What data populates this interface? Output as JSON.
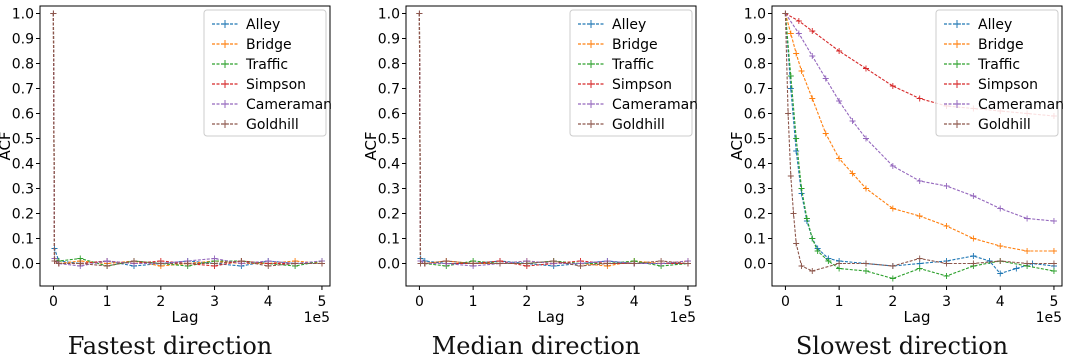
{
  "series_style": [
    {
      "name": "Alley",
      "color": "#1f77b4"
    },
    {
      "name": "Bridge",
      "color": "#ff7f0e"
    },
    {
      "name": "Traffic",
      "color": "#2ca02c"
    },
    {
      "name": "Simpson",
      "color": "#d62728"
    },
    {
      "name": "Cameraman",
      "color": "#9467bd"
    },
    {
      "name": "Goldhill",
      "color": "#8c564b"
    }
  ],
  "chart_data": [
    {
      "type": "line",
      "caption": "Fastest direction",
      "xlabel": "Lag",
      "ylabel": "ACF",
      "x_multiplier_label": "1e5",
      "xlim": [
        -0.25,
        5.15
      ],
      "ylim": [
        -0.09,
        1.03
      ],
      "xticks": [
        0,
        1,
        2,
        3,
        4,
        5
      ],
      "yticks": [
        0.0,
        0.1,
        0.2,
        0.3,
        0.4,
        0.5,
        0.6,
        0.7,
        0.8,
        0.9,
        1.0
      ],
      "ytick_labels": [
        "0.0",
        "0.1",
        "0.2",
        "0.3",
        "0.4",
        "0.5",
        "0.6",
        "0.7",
        "0.8",
        "0.9",
        "1.0"
      ],
      "legend": "top-right",
      "grid": false,
      "series": [
        {
          "name": "Alley",
          "x": [
            0,
            0.02,
            0.1,
            0.5,
            1,
            1.5,
            2,
            2.5,
            3,
            3.5,
            4,
            4.5,
            5
          ],
          "values": [
            1.0,
            0.06,
            0.01,
            0.0,
            0.01,
            -0.01,
            0.0,
            0.01,
            0.0,
            -0.01,
            0.01,
            0.0,
            0.0
          ]
        },
        {
          "name": "Bridge",
          "x": [
            0,
            0.02,
            0.1,
            0.5,
            1,
            1.5,
            2,
            2.5,
            3,
            3.5,
            4,
            4.5,
            5
          ],
          "values": [
            1.0,
            0.02,
            0.0,
            0.01,
            0.0,
            0.01,
            -0.01,
            0.0,
            0.01,
            0.0,
            0.0,
            0.01,
            0.0
          ]
        },
        {
          "name": "Traffic",
          "x": [
            0,
            0.02,
            0.1,
            0.5,
            1,
            1.5,
            2,
            2.5,
            3,
            3.5,
            4,
            4.5,
            5
          ],
          "values": [
            1.0,
            0.02,
            0.01,
            0.02,
            -0.01,
            0.01,
            0.0,
            -0.01,
            0.01,
            0.01,
            0.0,
            -0.01,
            0.01
          ]
        },
        {
          "name": "Simpson",
          "x": [
            0,
            0.02,
            0.1,
            0.5,
            1,
            1.5,
            2,
            2.5,
            3,
            3.5,
            4,
            4.5,
            5
          ],
          "values": [
            1.0,
            0.01,
            0.0,
            0.0,
            0.01,
            0.0,
            0.01,
            0.0,
            -0.01,
            0.01,
            0.0,
            0.0,
            0.0
          ]
        },
        {
          "name": "Cameraman",
          "x": [
            0,
            0.02,
            0.1,
            0.5,
            1,
            1.5,
            2,
            2.5,
            3,
            3.5,
            4,
            4.5,
            5
          ],
          "values": [
            1.0,
            0.02,
            0.0,
            -0.01,
            0.01,
            0.0,
            0.0,
            0.01,
            0.02,
            0.0,
            0.01,
            0.0,
            0.01
          ]
        },
        {
          "name": "Goldhill",
          "x": [
            0,
            0.02,
            0.1,
            0.5,
            1,
            1.5,
            2,
            2.5,
            3,
            3.5,
            4,
            4.5,
            5
          ],
          "values": [
            1.0,
            0.01,
            0.0,
            0.0,
            -0.01,
            0.01,
            0.0,
            0.0,
            0.0,
            0.01,
            -0.01,
            0.0,
            0.0
          ]
        }
      ]
    },
    {
      "type": "line",
      "caption": "Median direction",
      "xlabel": "Lag",
      "ylabel": "ACF",
      "x_multiplier_label": "1e5",
      "xlim": [
        -0.25,
        5.15
      ],
      "ylim": [
        -0.09,
        1.03
      ],
      "xticks": [
        0,
        1,
        2,
        3,
        4,
        5
      ],
      "yticks": [
        0.0,
        0.1,
        0.2,
        0.3,
        0.4,
        0.5,
        0.6,
        0.7,
        0.8,
        0.9,
        1.0
      ],
      "ytick_labels": [
        "0.0",
        "0.1",
        "0.2",
        "0.3",
        "0.4",
        "0.5",
        "0.6",
        "0.7",
        "0.8",
        "0.9",
        "1.0"
      ],
      "legend": "top-right",
      "grid": false,
      "series": [
        {
          "name": "Alley",
          "x": [
            0,
            0.02,
            0.1,
            0.5,
            1,
            1.5,
            2,
            2.5,
            3,
            3.5,
            4,
            4.5,
            5
          ],
          "values": [
            1.0,
            0.02,
            0.01,
            0.0,
            0.0,
            0.01,
            0.0,
            -0.01,
            0.0,
            0.01,
            0.0,
            0.0,
            0.0
          ]
        },
        {
          "name": "Bridge",
          "x": [
            0,
            0.02,
            0.1,
            0.5,
            1,
            1.5,
            2,
            2.5,
            3,
            3.5,
            4,
            4.5,
            5
          ],
          "values": [
            1.0,
            0.01,
            0.0,
            0.01,
            0.0,
            0.0,
            0.01,
            0.0,
            0.0,
            -0.01,
            0.01,
            0.0,
            0.01
          ]
        },
        {
          "name": "Traffic",
          "x": [
            0,
            0.02,
            0.1,
            0.5,
            1,
            1.5,
            2,
            2.5,
            3,
            3.5,
            4,
            4.5,
            5
          ],
          "values": [
            1.0,
            0.01,
            0.0,
            -0.01,
            0.01,
            0.0,
            0.0,
            0.01,
            0.0,
            0.0,
            0.01,
            -0.01,
            0.0
          ]
        },
        {
          "name": "Simpson",
          "x": [
            0,
            0.02,
            0.1,
            0.5,
            1,
            1.5,
            2,
            2.5,
            3,
            3.5,
            4,
            4.5,
            5
          ],
          "values": [
            1.0,
            0.01,
            0.0,
            0.0,
            0.0,
            0.01,
            -0.01,
            0.0,
            0.01,
            0.0,
            0.0,
            0.0,
            0.0
          ]
        },
        {
          "name": "Cameraman",
          "x": [
            0,
            0.02,
            0.1,
            0.5,
            1,
            1.5,
            2,
            2.5,
            3,
            3.5,
            4,
            4.5,
            5
          ],
          "values": [
            1.0,
            0.01,
            0.0,
            0.0,
            -0.01,
            0.0,
            0.01,
            0.0,
            0.0,
            0.01,
            0.0,
            0.0,
            0.01
          ]
        },
        {
          "name": "Goldhill",
          "x": [
            0,
            0.02,
            0.1,
            0.5,
            1,
            1.5,
            2,
            2.5,
            3,
            3.5,
            4,
            4.5,
            5
          ],
          "values": [
            1.0,
            0.0,
            0.0,
            0.01,
            0.0,
            0.0,
            0.0,
            0.01,
            -0.01,
            0.0,
            0.0,
            0.01,
            0.0
          ]
        }
      ]
    },
    {
      "type": "line",
      "caption": "Slowest direction",
      "xlabel": "Lag",
      "ylabel": "ACF",
      "x_multiplier_label": "1e5",
      "xlim": [
        -0.25,
        5.15
      ],
      "ylim": [
        -0.09,
        1.03
      ],
      "xticks": [
        0,
        1,
        2,
        3,
        4,
        5
      ],
      "yticks": [
        0.0,
        0.1,
        0.2,
        0.3,
        0.4,
        0.5,
        0.6,
        0.7,
        0.8,
        0.9,
        1.0
      ],
      "ytick_labels": [
        "0.0",
        "0.1",
        "0.2",
        "0.3",
        "0.4",
        "0.5",
        "0.6",
        "0.7",
        "0.8",
        "0.9",
        "1.0"
      ],
      "legend": "top-right",
      "grid": false,
      "series": [
        {
          "name": "Alley",
          "x": [
            0,
            0.1,
            0.2,
            0.3,
            0.4,
            0.5,
            0.6,
            0.8,
            1.0,
            1.5,
            2.0,
            2.5,
            3.0,
            3.5,
            3.8,
            4.0,
            4.3,
            4.6,
            5.0
          ],
          "values": [
            1.0,
            0.7,
            0.45,
            0.28,
            0.17,
            0.1,
            0.06,
            0.02,
            0.01,
            0.0,
            -0.01,
            0.0,
            0.01,
            0.03,
            0.01,
            -0.04,
            -0.02,
            0.0,
            -0.01
          ]
        },
        {
          "name": "Bridge",
          "x": [
            0,
            0.1,
            0.2,
            0.3,
            0.5,
            0.75,
            1.0,
            1.25,
            1.5,
            2.0,
            2.5,
            3.0,
            3.5,
            4.0,
            4.5,
            5.0
          ],
          "values": [
            1.0,
            0.92,
            0.84,
            0.77,
            0.66,
            0.52,
            0.42,
            0.36,
            0.3,
            0.22,
            0.19,
            0.15,
            0.1,
            0.07,
            0.05,
            0.05
          ]
        },
        {
          "name": "Traffic",
          "x": [
            0,
            0.1,
            0.2,
            0.3,
            0.4,
            0.5,
            0.6,
            0.8,
            1.0,
            1.5,
            2.0,
            2.5,
            3.0,
            3.5,
            4.0,
            4.5,
            5.0
          ],
          "values": [
            1.0,
            0.75,
            0.5,
            0.3,
            0.18,
            0.1,
            0.05,
            0.01,
            -0.02,
            -0.03,
            -0.06,
            -0.02,
            -0.05,
            -0.01,
            0.01,
            -0.01,
            -0.03
          ]
        },
        {
          "name": "Simpson",
          "x": [
            0,
            0.25,
            0.5,
            1.0,
            1.5,
            2.0,
            2.5,
            3.0,
            3.5,
            4.0,
            4.5,
            5.0
          ],
          "values": [
            1.0,
            0.97,
            0.93,
            0.85,
            0.78,
            0.71,
            0.66,
            0.63,
            0.62,
            0.61,
            0.6,
            0.59
          ]
        },
        {
          "name": "Cameraman",
          "x": [
            0,
            0.25,
            0.5,
            0.75,
            1.0,
            1.25,
            1.5,
            2.0,
            2.5,
            3.0,
            3.5,
            4.0,
            4.5,
            5.0
          ],
          "values": [
            1.0,
            0.92,
            0.83,
            0.74,
            0.65,
            0.57,
            0.5,
            0.39,
            0.33,
            0.31,
            0.27,
            0.22,
            0.18,
            0.17
          ]
        },
        {
          "name": "Goldhill",
          "x": [
            0,
            0.05,
            0.1,
            0.15,
            0.2,
            0.3,
            0.5,
            1.0,
            1.5,
            2.0,
            2.5,
            3.0,
            3.5,
            4.0,
            4.5,
            5.0
          ],
          "values": [
            1.0,
            0.6,
            0.35,
            0.2,
            0.08,
            -0.01,
            -0.03,
            0.0,
            0.0,
            -0.01,
            0.02,
            0.0,
            0.0,
            0.01,
            0.0,
            0.0
          ]
        }
      ]
    }
  ]
}
